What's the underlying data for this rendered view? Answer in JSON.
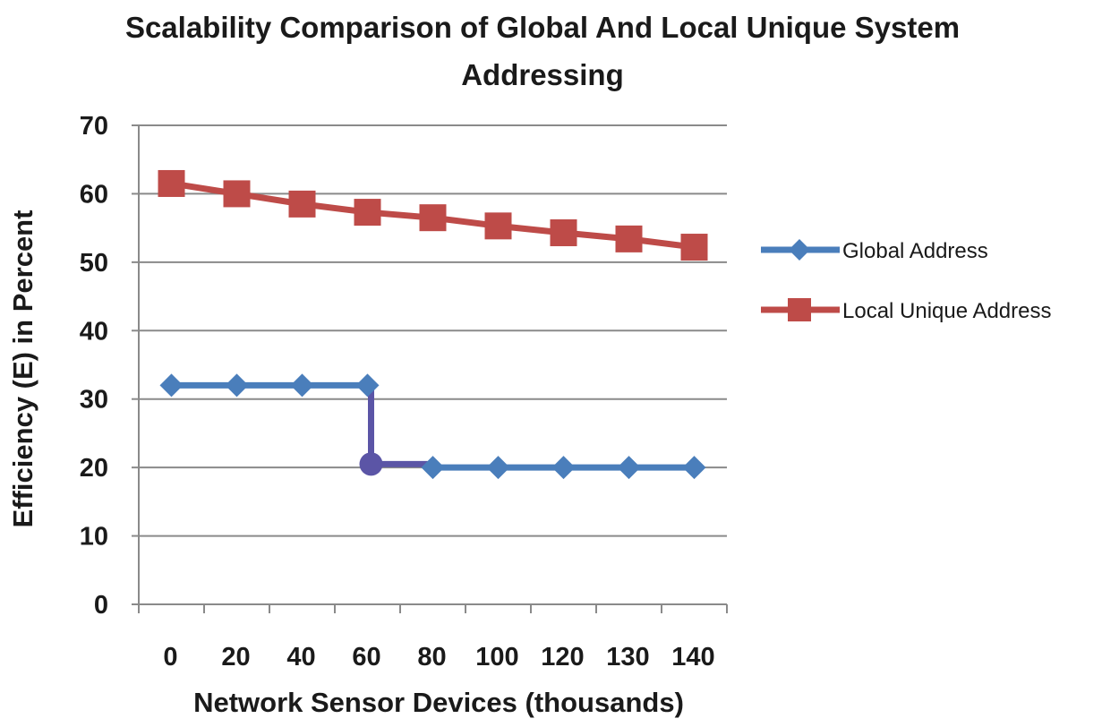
{
  "chart_data": {
    "type": "line",
    "title": "Scalability  Comparison  of Global  And Local  Unique System",
    "subtitle": "Addressing",
    "xlabel": "Network Sensor  Devices  (thousands)",
    "ylabel": "Efficiency  (E)  in Percent",
    "categories": [
      "0",
      "20",
      "40",
      "60",
      "80",
      "100",
      "120",
      "130",
      "140"
    ],
    "ylim": [
      0,
      70
    ],
    "yticks": [
      0,
      10,
      20,
      30,
      40,
      50,
      60,
      70
    ],
    "grid": true,
    "legend": "right",
    "series": [
      {
        "name": "Global Address",
        "marker": "diamond",
        "color": "#4a7ebb",
        "values": [
          32,
          32,
          32,
          32,
          20,
          20,
          20,
          20,
          20
        ],
        "annotation": {
          "between": [
            3,
            4
          ],
          "from": 32,
          "to": 20.5,
          "color": "#5b55a6"
        }
      },
      {
        "name": "Local Unique Address",
        "marker": "square",
        "color": "#be4b48",
        "values": [
          61.5,
          60,
          58.5,
          57.3,
          56.5,
          55.3,
          54.3,
          53.4,
          52.2
        ]
      }
    ]
  }
}
